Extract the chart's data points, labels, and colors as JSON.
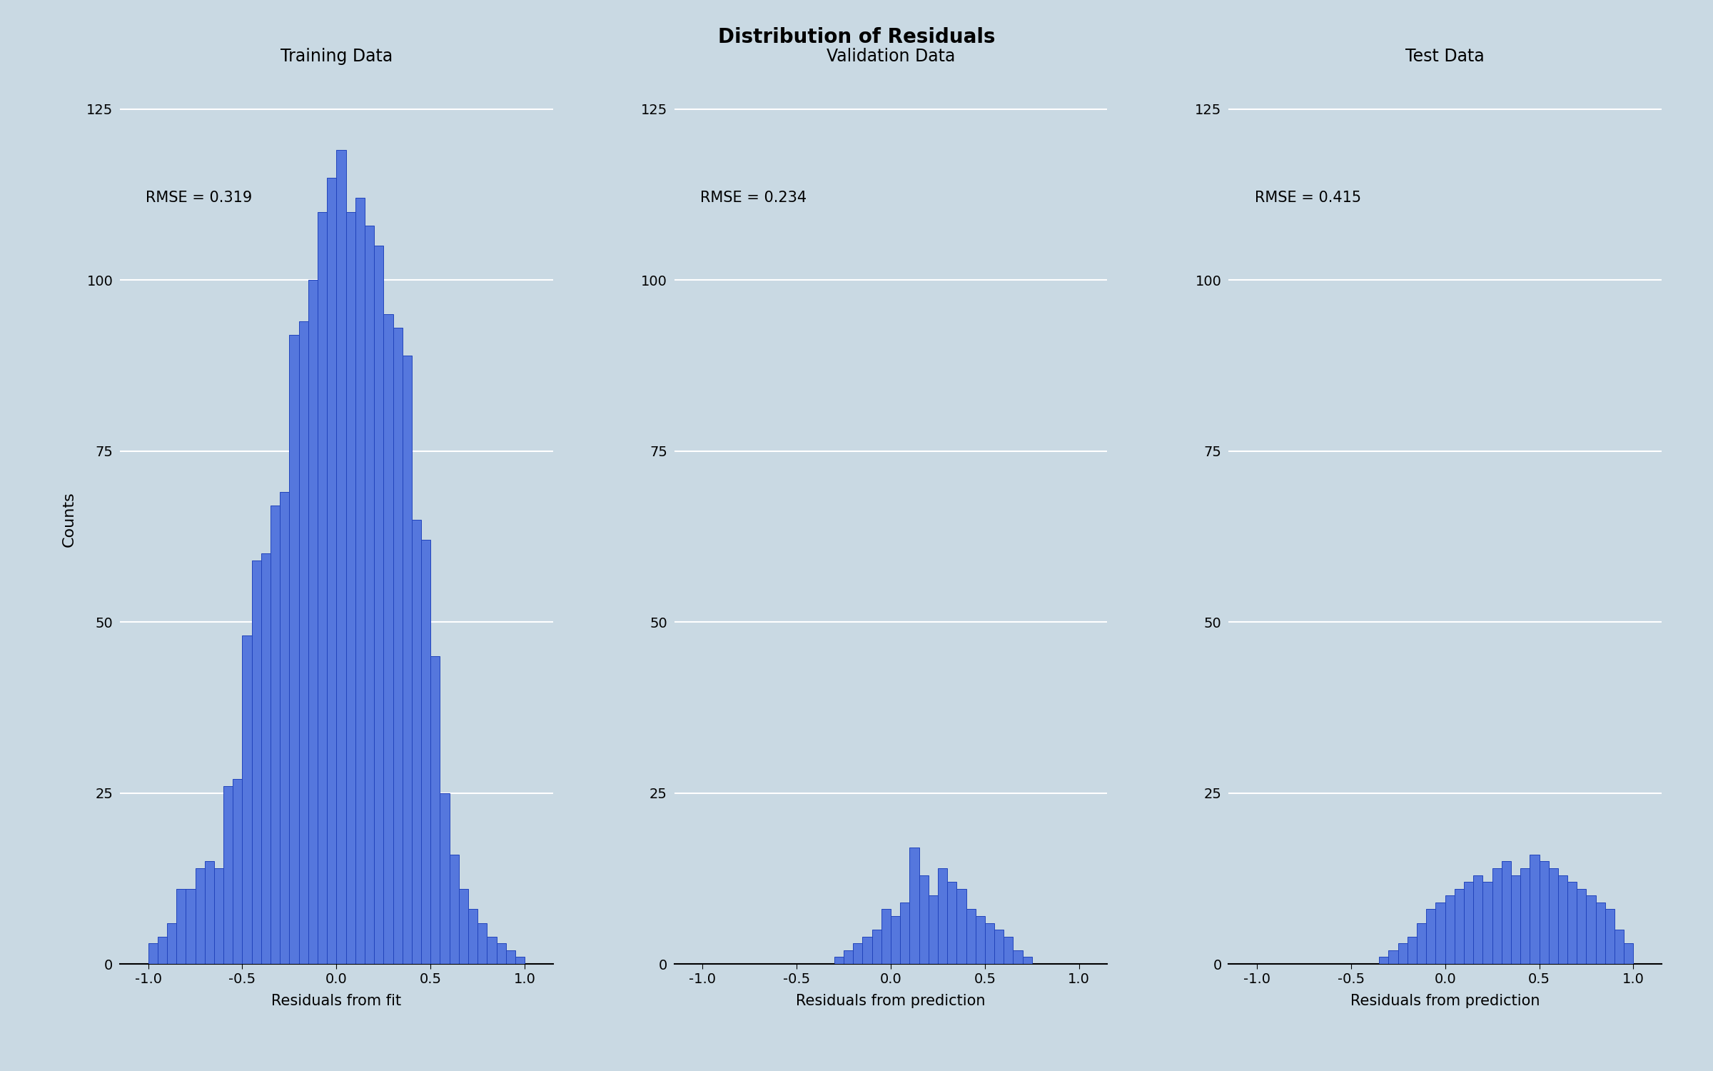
{
  "title": "Distribution of Residuals",
  "title_fontsize": 20,
  "title_fontweight": "bold",
  "background_color": "#c9d9e3",
  "bar_color": "#5577dd",
  "bar_edgecolor": "#2244bb",
  "subplot_titles": [
    "Training Data",
    "Validation Data",
    "Test Data"
  ],
  "subplot_title_fontsize": 17,
  "xlabels": [
    "Residuals from fit",
    "Residuals from prediction",
    "Residuals from prediction"
  ],
  "ylabel": "Counts",
  "rmse_labels": [
    "RMSE = 0.319",
    "RMSE = 0.234",
    "RMSE = 0.415"
  ],
  "xlim": [
    -1.15,
    1.15
  ],
  "ylim": [
    0,
    130
  ],
  "yticks": [
    0,
    25,
    50,
    75,
    100,
    125
  ],
  "xticks": [
    -1.0,
    -0.5,
    0.0,
    0.5,
    1.0
  ],
  "bin_edges": [
    -1.1,
    -1.0,
    -0.95,
    -0.9,
    -0.85,
    -0.8,
    -0.75,
    -0.7,
    -0.65,
    -0.6,
    -0.55,
    -0.5,
    -0.45,
    -0.4,
    -0.35,
    -0.3,
    -0.25,
    -0.2,
    -0.15,
    -0.1,
    -0.05,
    0.0,
    0.05,
    0.1,
    0.15,
    0.2,
    0.25,
    0.3,
    0.35,
    0.4,
    0.45,
    0.5,
    0.55,
    0.6,
    0.65,
    0.7,
    0.75,
    0.8,
    0.85,
    0.9,
    0.95,
    1.0,
    1.1
  ],
  "train_counts": [
    0,
    3,
    4,
    6,
    11,
    11,
    14,
    15,
    14,
    26,
    27,
    48,
    59,
    60,
    67,
    69,
    92,
    94,
    100,
    110,
    115,
    119,
    110,
    112,
    108,
    105,
    95,
    93,
    89,
    65,
    62,
    45,
    25,
    16,
    11,
    8,
    6,
    4,
    3,
    2,
    1,
    0
  ],
  "val_counts": [
    0,
    0,
    0,
    0,
    0,
    0,
    0,
    0,
    0,
    0,
    0,
    0,
    0,
    0,
    0,
    1,
    2,
    3,
    4,
    5,
    8,
    7,
    9,
    17,
    13,
    10,
    14,
    12,
    11,
    8,
    7,
    6,
    5,
    4,
    2,
    1,
    0,
    0,
    0,
    0,
    0,
    0
  ],
  "test_counts": [
    0,
    0,
    0,
    0,
    0,
    0,
    0,
    0,
    0,
    0,
    0,
    0,
    0,
    0,
    1,
    2,
    3,
    4,
    6,
    8,
    9,
    10,
    11,
    12,
    13,
    12,
    14,
    15,
    13,
    14,
    16,
    15,
    14,
    13,
    12,
    11,
    10,
    9,
    8,
    5,
    3,
    0
  ],
  "grid_color": "white",
  "grid_linewidth": 1.5,
  "tick_labelsize": 14,
  "xlabel_fontsize": 15,
  "ylabel_fontsize": 16,
  "rmse_fontsize": 15
}
